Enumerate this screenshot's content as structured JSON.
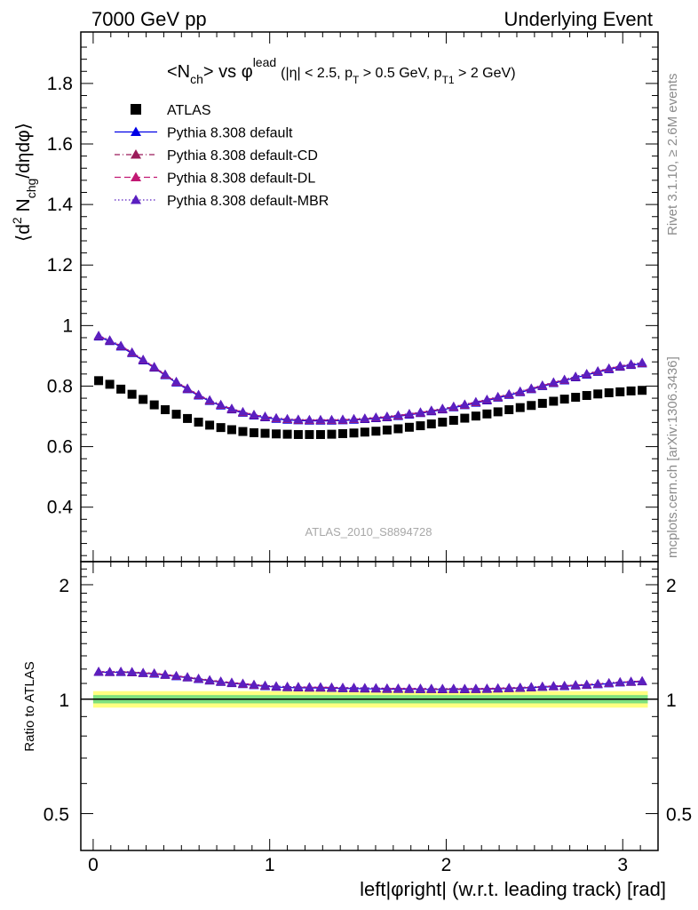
{
  "header": {
    "left": "7000 GeV pp",
    "right": "Underlying Event"
  },
  "side_texts": {
    "rivet": "Rivet 3.1.10, ≥ 2.6M events",
    "mcplots": "mcplots.cern.ch [arXiv:1306.3436]"
  },
  "analysis_tag": "ATLAS_2010_S8894728",
  "colors": {
    "data": "#000000",
    "default": "#0000e6",
    "cd": "#9b1b5a",
    "dl": "#c21873",
    "mbr": "#5a1fc0",
    "band_inner": "#7ee07e",
    "band_outer": "#ffff80"
  },
  "chart_data": [
    {
      "type": "scatter",
      "title_parts": {
        "n_lead": "<N",
        "n_sub": "ch",
        "n_tail": "> vs φ",
        "n_sup": "lead",
        "cut1": "(|η| < 2.5, p",
        "cut1_sub": "T",
        "cut2": " > 0.5 GeV, p",
        "cut2_sub": "T1",
        "cut3": " > 2 GeV)"
      },
      "ylabel_parts": {
        "a": "⟨d",
        "sup2": "2",
        "b": " N",
        "sub": "chg",
        "c": "/dηdφ⟩"
      },
      "xlabel": "left|φright| (w.r.t. leading track) [rad]",
      "xlim": [
        -0.07,
        3.2
      ],
      "ylim": [
        0.22,
        1.97
      ],
      "yticks": [
        0.4,
        0.6,
        0.8,
        1,
        1.2,
        1.4,
        1.6,
        1.8
      ],
      "ytick_labels": [
        "0.4",
        "0.6",
        "0.8",
        "1",
        "1.2",
        "1.4",
        "1.6",
        "1.8"
      ],
      "legend_position": "top-left",
      "x": [
        0.031,
        0.094,
        0.157,
        0.22,
        0.283,
        0.346,
        0.408,
        0.471,
        0.534,
        0.597,
        0.66,
        0.723,
        0.785,
        0.848,
        0.911,
        0.974,
        1.037,
        1.1,
        1.162,
        1.225,
        1.288,
        1.351,
        1.414,
        1.477,
        1.539,
        1.602,
        1.665,
        1.728,
        1.791,
        1.854,
        1.916,
        1.979,
        2.042,
        2.105,
        2.168,
        2.231,
        2.293,
        2.356,
        2.419,
        2.482,
        2.545,
        2.608,
        2.67,
        2.733,
        2.796,
        2.859,
        2.922,
        2.985,
        3.047,
        3.11
      ],
      "series": [
        {
          "name": "ATLAS",
          "marker": "square",
          "line": "none",
          "values": [
            0.818,
            0.806,
            0.79,
            0.773,
            0.756,
            0.738,
            0.722,
            0.707,
            0.693,
            0.681,
            0.671,
            0.663,
            0.656,
            0.65,
            0.646,
            0.644,
            0.642,
            0.641,
            0.64,
            0.64,
            0.64,
            0.641,
            0.643,
            0.645,
            0.648,
            0.651,
            0.655,
            0.659,
            0.664,
            0.669,
            0.675,
            0.681,
            0.687,
            0.694,
            0.701,
            0.708,
            0.715,
            0.722,
            0.729,
            0.736,
            0.743,
            0.75,
            0.757,
            0.763,
            0.769,
            0.774,
            0.778,
            0.781,
            0.784,
            0.786
          ]
        },
        {
          "name": "Pythia 8.308 default",
          "marker": "triangle",
          "line": "solid",
          "values": [
            0.963,
            0.948,
            0.93,
            0.908,
            0.884,
            0.86,
            0.835,
            0.811,
            0.789,
            0.768,
            0.75,
            0.735,
            0.722,
            0.711,
            0.702,
            0.696,
            0.691,
            0.688,
            0.686,
            0.685,
            0.685,
            0.685,
            0.686,
            0.688,
            0.69,
            0.693,
            0.696,
            0.7,
            0.705,
            0.71,
            0.716,
            0.722,
            0.729,
            0.736,
            0.744,
            0.752,
            0.761,
            0.77,
            0.779,
            0.789,
            0.799,
            0.809,
            0.818,
            0.828,
            0.837,
            0.846,
            0.855,
            0.863,
            0.869,
            0.874
          ]
        },
        {
          "name": "Pythia 8.308 default-CD",
          "marker": "triangle",
          "line": "dashdot",
          "values": [
            0.965,
            0.95,
            0.932,
            0.91,
            0.886,
            0.862,
            0.837,
            0.813,
            0.791,
            0.77,
            0.752,
            0.737,
            0.724,
            0.713,
            0.704,
            0.698,
            0.693,
            0.69,
            0.688,
            0.687,
            0.687,
            0.687,
            0.688,
            0.69,
            0.692,
            0.695,
            0.698,
            0.702,
            0.707,
            0.712,
            0.718,
            0.724,
            0.731,
            0.738,
            0.746,
            0.754,
            0.763,
            0.772,
            0.781,
            0.791,
            0.801,
            0.811,
            0.82,
            0.83,
            0.839,
            0.848,
            0.857,
            0.865,
            0.871,
            0.876
          ]
        },
        {
          "name": "Pythia 8.308 default-DL",
          "marker": "triangle",
          "line": "dashed",
          "values": [
            0.966,
            0.951,
            0.933,
            0.911,
            0.887,
            0.863,
            0.838,
            0.814,
            0.792,
            0.771,
            0.753,
            0.738,
            0.725,
            0.714,
            0.705,
            0.699,
            0.694,
            0.691,
            0.689,
            0.688,
            0.688,
            0.688,
            0.689,
            0.691,
            0.693,
            0.696,
            0.699,
            0.703,
            0.708,
            0.713,
            0.719,
            0.725,
            0.732,
            0.739,
            0.747,
            0.755,
            0.764,
            0.773,
            0.782,
            0.792,
            0.802,
            0.812,
            0.821,
            0.831,
            0.84,
            0.849,
            0.858,
            0.866,
            0.872,
            0.877
          ]
        },
        {
          "name": "Pythia 8.308 default-MBR",
          "marker": "triangle",
          "line": "dotted",
          "values": [
            0.967,
            0.952,
            0.934,
            0.912,
            0.888,
            0.864,
            0.839,
            0.815,
            0.793,
            0.772,
            0.754,
            0.739,
            0.726,
            0.715,
            0.706,
            0.7,
            0.695,
            0.692,
            0.69,
            0.689,
            0.689,
            0.689,
            0.69,
            0.692,
            0.694,
            0.697,
            0.7,
            0.704,
            0.709,
            0.714,
            0.72,
            0.726,
            0.733,
            0.74,
            0.748,
            0.756,
            0.765,
            0.774,
            0.783,
            0.793,
            0.803,
            0.813,
            0.822,
            0.832,
            0.841,
            0.85,
            0.859,
            0.867,
            0.873,
            0.878
          ]
        }
      ]
    },
    {
      "type": "scatter",
      "ylabel": "Ratio to ATLAS",
      "xlabel": "left|φright| (w.r.t. leading track) [rad]",
      "xlim": [
        -0.07,
        3.2
      ],
      "ylim": [
        0.4,
        2.3
      ],
      "log_y": true,
      "yticks": [
        0.5,
        1,
        2
      ],
      "ytick_labels": [
        "0.5",
        "1",
        "2"
      ],
      "xticks": [
        0,
        1,
        2,
        3
      ],
      "xtick_labels": [
        "0",
        "1",
        "2",
        "3"
      ],
      "reference_line": 1,
      "band_inner": [
        0.975,
        1.025
      ],
      "band_outer": [
        0.95,
        1.05
      ]
    }
  ]
}
